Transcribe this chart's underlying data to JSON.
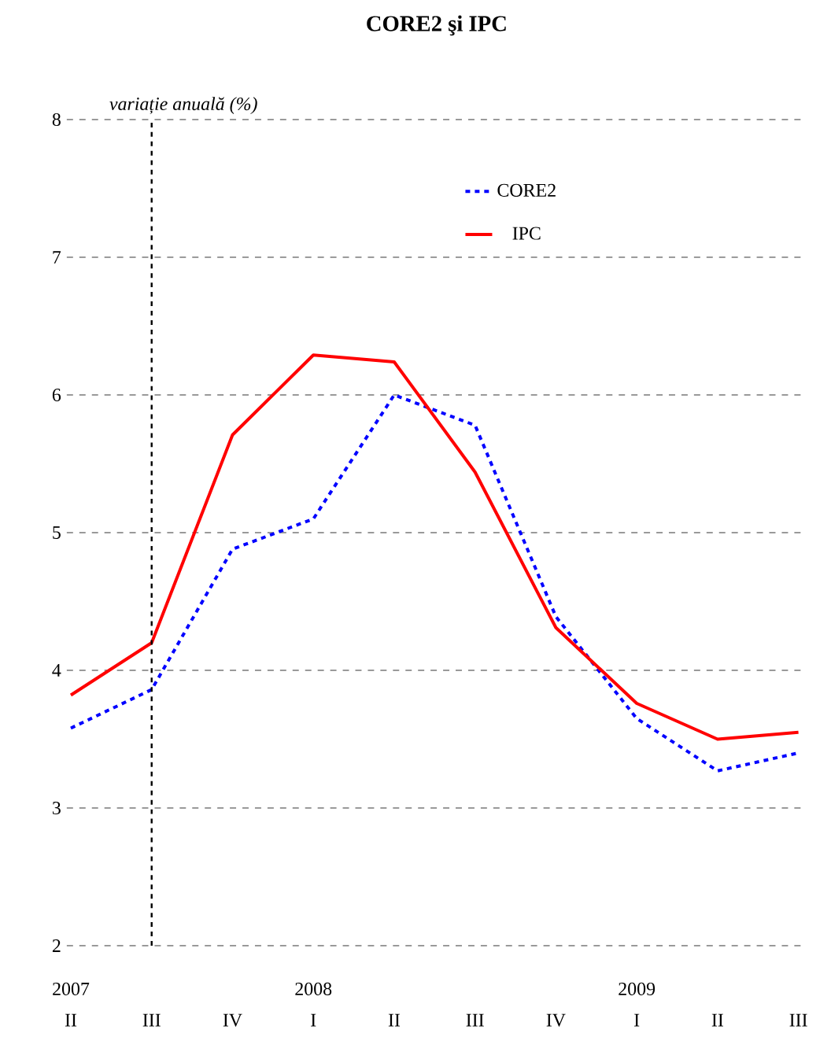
{
  "chart_data": {
    "type": "line",
    "title": "**CORE2 şi IPC**",
    "ylabel": "*variație anuală (%)*",
    "categories": [
      "II",
      "III",
      "IV",
      "I",
      "II",
      "III",
      "IV",
      "I",
      "II",
      "III"
    ],
    "series": [
      {
        "name": "CORE2",
        "color": "#0000ff",
        "line_style": "dashed",
        "values": [
          3.58,
          3.86,
          4.88,
          5.1,
          6.0,
          5.78,
          4.39,
          3.65,
          3.27,
          3.4
        ]
      },
      {
        "name": "IPC",
        "color": "#ff0000",
        "line_style": "solid",
        "values": [
          3.82,
          4.2,
          5.71,
          6.29,
          6.24,
          5.44,
          4.31,
          3.76,
          3.5,
          3.55
        ]
      }
    ],
    "ylim": [
      2,
      8
    ],
    "yticks": [
      2,
      3,
      4,
      5,
      6,
      7,
      8
    ],
    "grid": "y",
    "legend": "top right",
    "marker": "none",
    "ref_lines": [
      {
        "axis": "x",
        "value": "III",
        "color": "#000000",
        "line_style": "dashed"
      }
    ],
    "annotations": [
      "2007",
      "2008",
      "2009"
    ]
  }
}
